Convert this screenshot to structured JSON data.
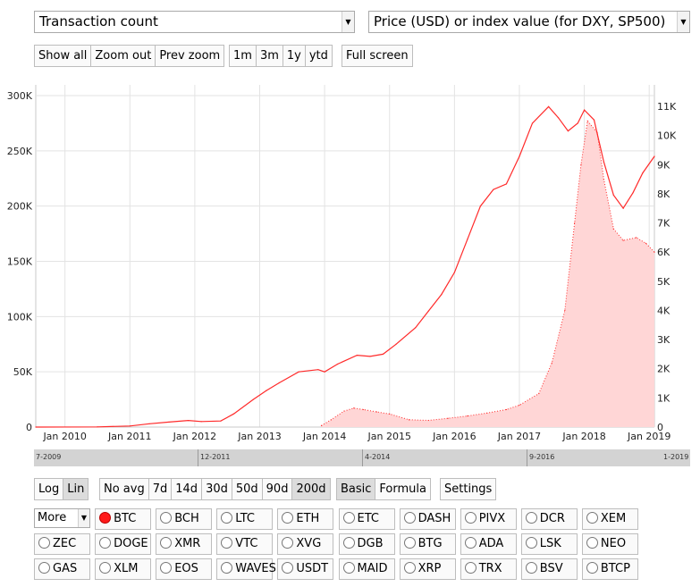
{
  "selectors": {
    "left_metric": "Transaction count",
    "right_metric": "Price (USD) or index value (for DXY, SP500)",
    "arrow_glyph": "▼"
  },
  "zoom_buttons": [
    "Show all",
    "Zoom out",
    "Prev zoom"
  ],
  "range_buttons": [
    "1m",
    "3m",
    "1y",
    "ytd"
  ],
  "fullscreen_label": "Full screen",
  "scale_buttons": [
    "Log",
    "Lin"
  ],
  "avg_buttons": [
    "No avg",
    "7d",
    "14d",
    "30d",
    "50d",
    "90d",
    "200d"
  ],
  "mode_buttons": [
    "Basic",
    "Formula"
  ],
  "settings_label": "Settings",
  "more_label": "More",
  "coins": [
    [
      "BTC",
      "BCH",
      "LTC",
      "ETH",
      "ETC",
      "DASH",
      "PIVX",
      "DCR",
      "XEM"
    ],
    [
      "ZEC",
      "DOGE",
      "XMR",
      "VTC",
      "XVG",
      "DGB",
      "BTG",
      "ADA",
      "LSK",
      "NEO"
    ],
    [
      "GAS",
      "XLM",
      "EOS",
      "WAVES",
      "USDT",
      "MAID",
      "XRP",
      "TRX",
      "BSV",
      "BTCP"
    ]
  ],
  "selected_coin": "BTC",
  "timeline_labels": [
    "7-2009",
    "12-2011",
    "4-2014",
    "9-2016",
    "1-2019"
  ],
  "chart_data": {
    "type": "line",
    "x_tick_labels": [
      "Jan 2010",
      "Jan 2011",
      "Jan 2012",
      "Jan 2013",
      "Jan 2014",
      "Jan 2015",
      "Jan 2016",
      "Jan 2017",
      "Jan 2018",
      "Jan 2019"
    ],
    "y_left_ticks": [
      "0",
      "50K",
      "100K",
      "150K",
      "200K",
      "250K",
      "300K"
    ],
    "y_right_ticks": [
      "0",
      "1K",
      "2K",
      "3K",
      "4K",
      "5K",
      "6K",
      "7K",
      "8K",
      "9K",
      "10K",
      "11K"
    ],
    "ylim_left": [
      0,
      300000
    ],
    "ylim_right": [
      0,
      11000
    ],
    "xlim": [
      2009.55,
      2019.08
    ],
    "grid": true,
    "series": [
      {
        "color": "#ff2a2a",
        "axis": "left",
        "style": "line",
        "points": [
          [
            2009.55,
            0
          ],
          [
            2010.5,
            200
          ],
          [
            2011.0,
            1000
          ],
          [
            2011.3,
            3000
          ],
          [
            2011.6,
            4500
          ],
          [
            2011.9,
            6000
          ],
          [
            2012.1,
            5000
          ],
          [
            2012.4,
            5500
          ],
          [
            2012.6,
            12000
          ],
          [
            2012.9,
            25000
          ],
          [
            2013.1,
            33000
          ],
          [
            2013.3,
            40000
          ],
          [
            2013.6,
            50000
          ],
          [
            2013.9,
            52000
          ],
          [
            2014.0,
            50000
          ],
          [
            2014.2,
            57000
          ],
          [
            2014.5,
            65000
          ],
          [
            2014.7,
            64000
          ],
          [
            2014.9,
            66000
          ],
          [
            2015.1,
            75000
          ],
          [
            2015.4,
            90000
          ],
          [
            2015.6,
            105000
          ],
          [
            2015.8,
            120000
          ],
          [
            2016.0,
            140000
          ],
          [
            2016.2,
            170000
          ],
          [
            2016.4,
            200000
          ],
          [
            2016.6,
            215000
          ],
          [
            2016.8,
            220000
          ],
          [
            2017.0,
            245000
          ],
          [
            2017.2,
            275000
          ],
          [
            2017.45,
            290000
          ],
          [
            2017.6,
            280000
          ],
          [
            2017.75,
            268000
          ],
          [
            2017.9,
            275000
          ],
          [
            2018.0,
            287000
          ],
          [
            2018.15,
            278000
          ],
          [
            2018.3,
            240000
          ],
          [
            2018.45,
            210000
          ],
          [
            2018.6,
            198000
          ],
          [
            2018.75,
            212000
          ],
          [
            2018.9,
            230000
          ],
          [
            2019.08,
            245000
          ]
        ]
      },
      {
        "color": "#ff2a2a",
        "axis": "right",
        "style": "area-dotted",
        "points": [
          [
            2013.95,
            50
          ],
          [
            2014.1,
            250
          ],
          [
            2014.3,
            550
          ],
          [
            2014.45,
            650
          ],
          [
            2014.6,
            600
          ],
          [
            2014.8,
            520
          ],
          [
            2015.0,
            450
          ],
          [
            2015.3,
            250
          ],
          [
            2015.6,
            230
          ],
          [
            2015.9,
            300
          ],
          [
            2016.2,
            380
          ],
          [
            2016.5,
            480
          ],
          [
            2016.8,
            600
          ],
          [
            2017.0,
            750
          ],
          [
            2017.3,
            1150
          ],
          [
            2017.5,
            2200
          ],
          [
            2017.7,
            4000
          ],
          [
            2017.85,
            7000
          ],
          [
            2017.95,
            9000
          ],
          [
            2018.05,
            10500
          ],
          [
            2018.2,
            10100
          ],
          [
            2018.3,
            8500
          ],
          [
            2018.45,
            6800
          ],
          [
            2018.6,
            6400
          ],
          [
            2018.8,
            6500
          ],
          [
            2018.95,
            6300
          ],
          [
            2019.08,
            6000
          ]
        ]
      }
    ]
  }
}
